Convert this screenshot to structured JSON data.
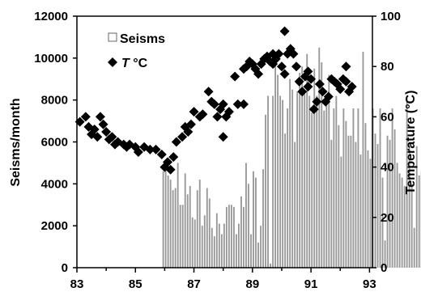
{
  "chart_data": {
    "type": "bar+scatter",
    "title": "",
    "x_axis": {
      "label": "",
      "range": [
        83,
        93.1
      ],
      "ticks": [
        83,
        85,
        87,
        89,
        91,
        93
      ],
      "tick_labels": [
        "83",
        "85",
        "87",
        "89",
        "91",
        "93"
      ]
    },
    "y_left": {
      "label": "Seisms/month",
      "range": [
        0,
        12000
      ],
      "ticks": [
        0,
        2000,
        4000,
        6000,
        8000,
        10000,
        12000
      ],
      "tick_labels": [
        "0",
        "2000",
        "4000",
        "6000",
        "8000",
        "10000",
        "12000"
      ]
    },
    "y_right": {
      "label": "Temperature (°C)",
      "range": [
        0,
        100
      ],
      "ticks": [
        0,
        20,
        40,
        60,
        80,
        100
      ],
      "tick_labels": [
        "0",
        "20",
        "40",
        "60",
        "80",
        "100"
      ]
    },
    "legend": {
      "placement": "top-left",
      "items": [
        {
          "symbol": "open-square",
          "label": "Seisms",
          "italic_prefix": ""
        },
        {
          "symbol": "filled-diamond",
          "label": " °C",
          "italic_prefix": "T"
        }
      ]
    },
    "colors": {
      "bars": "#999999",
      "markers": "#000000"
    },
    "grid": false,
    "series": [
      {
        "name": "Seisms",
        "kind": "bar",
        "axis": "left",
        "x_start": 85.95,
        "x_step": 0.0833,
        "values": [
          4600,
          5000,
          4400,
          4200,
          3700,
          3800,
          5000,
          3000,
          3000,
          4500,
          3500,
          3900,
          2400,
          2300,
          3700,
          4200,
          2000,
          2500,
          3800,
          3300,
          1900,
          1500,
          2600,
          2100,
          1600,
          2100,
          2900,
          3000,
          3000,
          2900,
          1600,
          2100,
          3400,
          2900,
          5000,
          4000,
          1600,
          4600,
          4300,
          1200,
          2000,
          4700,
          7300,
          8200,
          200,
          8200,
          10300,
          9200,
          8200,
          8000,
          6400,
          7600,
          9000,
          8500,
          6000,
          8400,
          9300,
          9600,
          8300,
          10200,
          8200,
          7400,
          9500,
          8200,
          10500,
          9800,
          7500,
          8200,
          9200,
          6100,
          7600,
          8200,
          6800,
          5300,
          7600,
          7000,
          6300,
          6300,
          7600,
          6000,
          7600,
          5400,
          10300,
          6900,
          5600,
          5200,
          7600,
          6400,
          5900,
          7600,
          4300,
          1300,
          6300,
          6100,
          7600,
          6600,
          5000,
          4500,
          4300,
          3900,
          8100,
          6000,
          4000,
          1900,
          5800,
          4400,
          4600,
          4100,
          4700,
          4200,
          3600,
          4400,
          3800,
          4700,
          3700,
          4100,
          6800,
          6800
        ]
      },
      {
        "name": "T °C",
        "kind": "scatter",
        "axis": "right",
        "points": [
          [
            83.1,
            58
          ],
          [
            83.3,
            60
          ],
          [
            83.4,
            56
          ],
          [
            83.5,
            53
          ],
          [
            83.6,
            55
          ],
          [
            83.7,
            52
          ],
          [
            83.8,
            60
          ],
          [
            83.9,
            57
          ],
          [
            84.0,
            54
          ],
          [
            84.1,
            51
          ],
          [
            84.2,
            52
          ],
          [
            84.3,
            49
          ],
          [
            84.4,
            50
          ],
          [
            84.6,
            49
          ],
          [
            84.7,
            48
          ],
          [
            84.8,
            49
          ],
          [
            85.0,
            48
          ],
          [
            85.1,
            46
          ],
          [
            85.3,
            48
          ],
          [
            85.5,
            47
          ],
          [
            85.7,
            47
          ],
          [
            85.9,
            45
          ],
          [
            86.0,
            40
          ],
          [
            86.1,
            42
          ],
          [
            86.2,
            39
          ],
          [
            86.3,
            44
          ],
          [
            86.4,
            50
          ],
          [
            86.6,
            52
          ],
          [
            86.7,
            56
          ],
          [
            86.8,
            54
          ],
          [
            86.9,
            57
          ],
          [
            87.0,
            62
          ],
          [
            87.2,
            60
          ],
          [
            87.3,
            61
          ],
          [
            87.5,
            70
          ],
          [
            87.6,
            66
          ],
          [
            87.7,
            65
          ],
          [
            87.8,
            60
          ],
          [
            87.9,
            63
          ],
          [
            88.0,
            65
          ],
          [
            88.1,
            60
          ],
          [
            88.0,
            52
          ],
          [
            88.2,
            62
          ],
          [
            88.4,
            76
          ],
          [
            88.5,
            65
          ],
          [
            88.7,
            65
          ],
          [
            88.8,
            80
          ],
          [
            88.9,
            82
          ],
          [
            89.0,
            81
          ],
          [
            89.1,
            79
          ],
          [
            89.2,
            77
          ],
          [
            89.3,
            81
          ],
          [
            89.4,
            83
          ],
          [
            89.5,
            84
          ],
          [
            89.6,
            82
          ],
          [
            89.7,
            85
          ],
          [
            89.8,
            83
          ],
          [
            89.9,
            85
          ],
          [
            90.0,
            80
          ],
          [
            90.1,
            77
          ],
          [
            90.2,
            85
          ],
          [
            90.3,
            87
          ],
          [
            90.4,
            85
          ],
          [
            90.5,
            80
          ],
          [
            90.6,
            74
          ],
          [
            90.7,
            70
          ],
          [
            90.8,
            76
          ],
          [
            90.9,
            72
          ],
          [
            91.0,
            75
          ],
          [
            91.1,
            63
          ],
          [
            91.2,
            66
          ],
          [
            91.3,
            73
          ],
          [
            91.4,
            70
          ],
          [
            91.5,
            66
          ],
          [
            91.6,
            68
          ],
          [
            91.7,
            75
          ],
          [
            91.8,
            74
          ],
          [
            91.9,
            73
          ],
          [
            92.0,
            71
          ],
          [
            92.1,
            75
          ],
          [
            92.2,
            74
          ],
          [
            92.3,
            70
          ],
          [
            92.2,
            80
          ],
          [
            92.4,
            72
          ],
          [
            90.1,
            94
          ],
          [
            88.7,
            79
          ],
          [
            90.9,
            78
          ],
          [
            89.7,
            81
          ]
        ]
      }
    ]
  }
}
